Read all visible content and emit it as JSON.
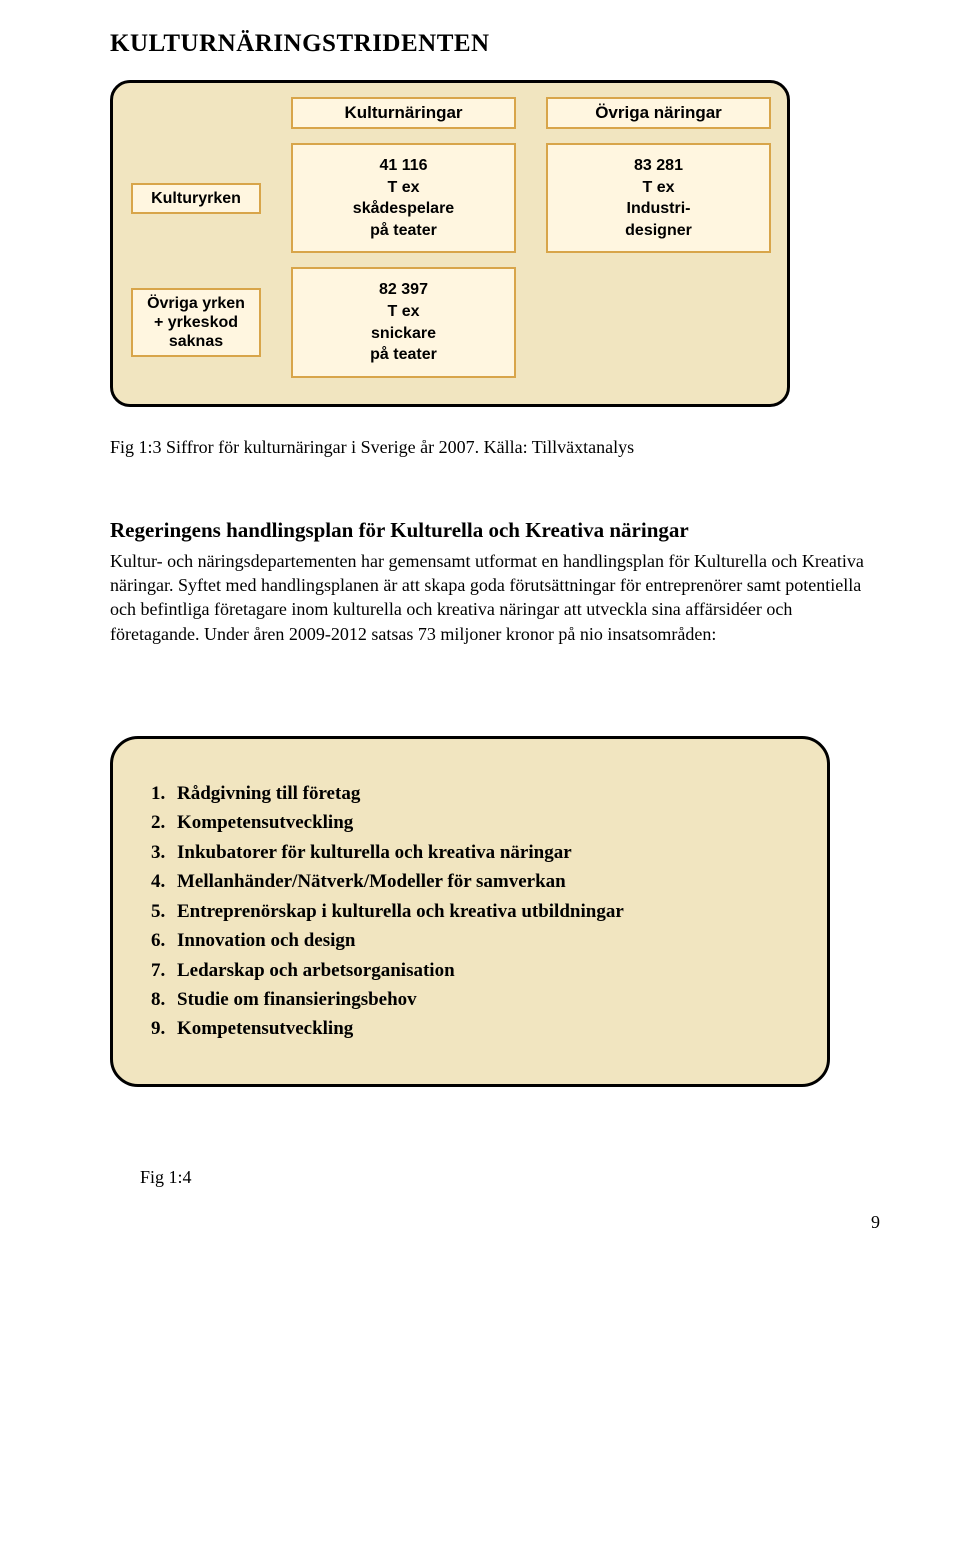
{
  "page": {
    "title": "KULTURNÄRINGSTRIDENTEN",
    "pageNumber": "9"
  },
  "matrix": {
    "colHeaders": [
      "Kulturnäringar",
      "Övriga näringar"
    ],
    "rowLabels": [
      {
        "line1": "Kulturyrken"
      },
      {
        "line1": "Övriga yrken",
        "line2": "+ yrkeskod",
        "line3": "saknas"
      }
    ],
    "cells": {
      "r1c1": {
        "l1": "41 116",
        "l2": "T ex",
        "l3": "skådespelare",
        "l4": "på teater"
      },
      "r1c2": {
        "l1": "83 281",
        "l2": "T ex",
        "l3": "Industri-",
        "l4": "designer"
      },
      "r2c1": {
        "l1": "82 397",
        "l2": "T ex",
        "l3": "snickare",
        "l4": "på teater"
      }
    },
    "styling": {
      "panel_bg": "#f1e5c0",
      "panel_border": "#000000",
      "panel_border_width": 3,
      "panel_radius": 20,
      "cell_bg": "#fff6e0",
      "cell_border": "#d8a54a",
      "cell_border_width": 2,
      "font_family": "Helvetica",
      "font_size": 16
    }
  },
  "caption1": "Fig 1:3 Siffror för kulturnäringar i Sverige år 2007. Källa: Tillväxtanalys",
  "bodyHeading": "Regeringens handlingsplan för Kulturella och Kreativa näringar",
  "bodyText": "Kultur- och näringsdepartementen har gemensamt utformat en handlingsplan för Kulturella och Kreativa näringar. Syftet med handlingsplanen är att skapa goda förutsättningar för entreprenörer samt potentiella och befintliga företagare inom kulturella och kreativa näringar att utveckla sina affärsidéer och företagande. Under åren 2009-2012 satsas 73 miljoner kronor på nio insatsområden:",
  "listPanel": {
    "items": [
      "Rådgivning till företag",
      "Kompetensutveckling",
      "Inkubatorer för kulturella och kreativa näringar",
      "Mellanhänder/Nätverk/Modeller för samverkan",
      "Entreprenörskap i kulturella och kreativa utbildningar",
      "Innovation och design",
      "Ledarskap och arbetsorganisation",
      "Studie om finansieringsbehov",
      "Kompetensutveckling"
    ],
    "styling": {
      "panel_bg": "#f1e5c0",
      "panel_border": "#000000",
      "panel_border_width": 3,
      "panel_radius": 28,
      "font_family": "Georgia",
      "font_size": 19,
      "font_weight": "bold"
    }
  },
  "figLabel": "Fig 1:4"
}
